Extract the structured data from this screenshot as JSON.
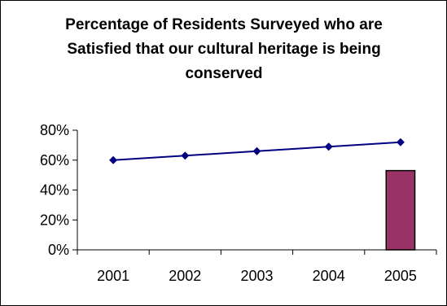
{
  "chart_data": {
    "type": "line",
    "title": "Percentage of Residents Surveyed who are Satisfied that our cultural heritage is being conserved",
    "categories": [
      "2001",
      "2002",
      "2003",
      "2004",
      "2005"
    ],
    "series": [
      {
        "type": "line",
        "values": [
          60,
          63,
          66,
          69,
          72
        ],
        "color": "#000080",
        "marker": "diamond"
      },
      {
        "type": "bar",
        "values": [
          null,
          null,
          null,
          null,
          53
        ],
        "color": "#993366"
      }
    ],
    "ylim": [
      0,
      80
    ],
    "yticks": [
      "0%",
      "20%",
      "40%",
      "60%",
      "80%"
    ],
    "grid": false,
    "legend": "none"
  }
}
